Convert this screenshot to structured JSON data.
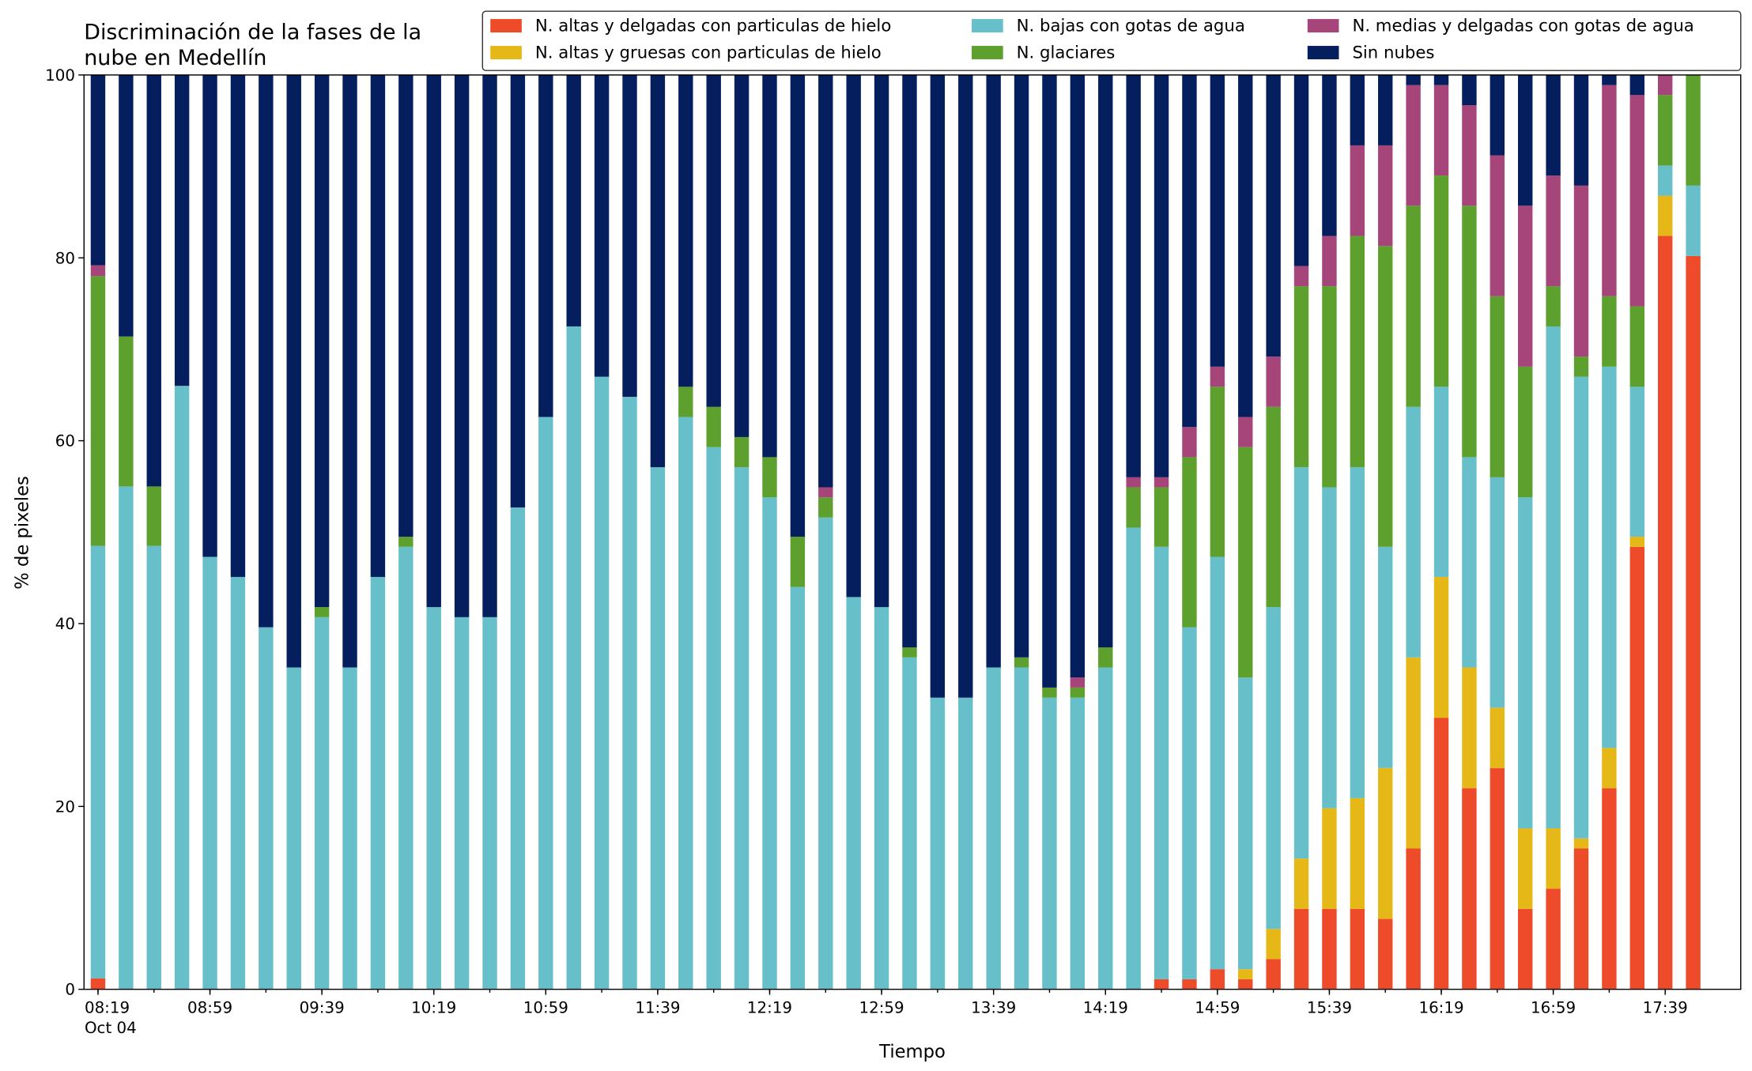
{
  "chart_data": {
    "type": "stacked_bar",
    "title": "Discriminación de la fases de la\nnube en Medellín",
    "xlabel": "Tiempo",
    "ylabel": "% de pixeles",
    "xdate": "Oct 04",
    "categories": [
      "08:19",
      null,
      null,
      null,
      "08:59",
      null,
      null,
      null,
      "09:39",
      null,
      null,
      null,
      "10:19",
      null,
      null,
      null,
      "10:59",
      null,
      null,
      null,
      "11:39",
      null,
      null,
      null,
      "12:19",
      null,
      null,
      null,
      "12:59",
      null,
      null,
      null,
      "13:39",
      null,
      null,
      null,
      "14:19",
      null,
      null,
      null,
      "14:59",
      null,
      null,
      null,
      "15:39",
      null,
      null,
      null,
      "16:19",
      null,
      null,
      null,
      "16:59",
      null,
      null,
      null,
      "17:39",
      null
    ],
    "ylim": [
      0,
      100
    ],
    "yticks": [
      0,
      20,
      40,
      60,
      80,
      100
    ],
    "legend": "upper right",
    "series": [
      {
        "name": "N. altas y delgadas con particulas de hielo",
        "color": "#ee4b2b",
        "values": [
          1.2,
          0,
          0,
          0,
          0,
          0,
          0,
          0,
          0,
          0,
          0,
          0,
          0,
          0,
          0,
          0,
          0,
          0,
          0,
          0,
          0,
          0,
          0,
          0,
          0,
          0,
          0,
          0,
          0,
          0,
          0,
          0,
          0,
          0,
          0,
          0,
          0,
          0,
          1.1,
          1.1,
          2.2,
          1.1,
          3.3,
          8.8,
          8.8,
          8.8,
          7.7,
          15.4,
          29.7,
          22,
          24.2,
          8.8,
          11,
          15.4,
          22,
          48.4,
          82.4,
          80.2
        ]
      },
      {
        "name": "N. altas y gruesas con particulas de hielo",
        "color": "#e6b817",
        "values": [
          0,
          0,
          0,
          0,
          0,
          0,
          0,
          0,
          0,
          0,
          0,
          0,
          0,
          0,
          0,
          0,
          0,
          0,
          0,
          0,
          0,
          0,
          0,
          0,
          0,
          0,
          0,
          0,
          0,
          0,
          0,
          0,
          0,
          0,
          0,
          0,
          0,
          0,
          0,
          0,
          0,
          1.1,
          3.3,
          5.5,
          11,
          12.1,
          16.5,
          20.9,
          15.4,
          13.2,
          6.6,
          8.8,
          6.6,
          1.1,
          4.4,
          1.1,
          4.4,
          0
        ]
      },
      {
        "name": "N. bajas con gotas de agua",
        "color": "#67bfca",
        "values": [
          47.3,
          55,
          48.5,
          66,
          47.3,
          45.1,
          39.6,
          35.2,
          40.7,
          35.2,
          45.1,
          48.4,
          41.8,
          40.7,
          40.7,
          52.7,
          62.6,
          72.5,
          67,
          64.8,
          57.1,
          62.6,
          59.3,
          57.1,
          53.8,
          44,
          51.6,
          42.9,
          41.8,
          36.3,
          31.9,
          31.9,
          35.2,
          35.2,
          31.9,
          31.9,
          35.2,
          50.5,
          47.3,
          38.5,
          45.1,
          31.9,
          35.2,
          42.8,
          35.1,
          36.2,
          24.2,
          27.4,
          20.8,
          23,
          25.2,
          36.2,
          54.9,
          50.5,
          41.7,
          16.4,
          3.3,
          7.7
        ]
      },
      {
        "name": "N. glaciares",
        "color": "#5da02e",
        "values": [
          29.5,
          16.4,
          6.5,
          0,
          0,
          0,
          0,
          0,
          1.1,
          0,
          0,
          1.1,
          0,
          0,
          0,
          0,
          0,
          0,
          0,
          0,
          0,
          3.3,
          4.4,
          3.3,
          4.4,
          5.5,
          2.2,
          0,
          0,
          1.1,
          0,
          0,
          0,
          1.1,
          1.1,
          1.1,
          2.2,
          4.4,
          6.5,
          18.6,
          18.6,
          25.2,
          21.9,
          19.8,
          22,
          25.3,
          32.9,
          22,
          23.1,
          27.5,
          19.8,
          14.3,
          4.4,
          2.2,
          7.7,
          8.8,
          7.7,
          12.1
        ]
      },
      {
        "name": "N. medias y delgadas con gotas de agua",
        "color": "#a6457a",
        "values": [
          1.2,
          0,
          0,
          0,
          0,
          0,
          0,
          0,
          0,
          0,
          0,
          0,
          0,
          0,
          0,
          0,
          0,
          0,
          0,
          0,
          0,
          0,
          0,
          0,
          0,
          0,
          1.1,
          0,
          0,
          0,
          0,
          0,
          0,
          0,
          0,
          1.1,
          0,
          1.1,
          1.1,
          3.3,
          2.2,
          3.3,
          5.5,
          2.2,
          5.5,
          9.9,
          11,
          13.2,
          9.9,
          11,
          15.4,
          17.6,
          12.1,
          18.7,
          23.1,
          23.1,
          2.2,
          0
        ]
      },
      {
        "name": "Sin nubes",
        "color": "#041e5e",
        "values": [
          20.8,
          28.6,
          45,
          34,
          52.7,
          54.9,
          60.4,
          64.8,
          58.2,
          64.8,
          54.9,
          50.5,
          58.2,
          59.3,
          59.3,
          47.3,
          37.4,
          27.5,
          33,
          35.2,
          42.9,
          34.1,
          36.3,
          39.6,
          41.8,
          50.5,
          45.1,
          57.1,
          58.2,
          62.6,
          68.1,
          68.1,
          64.8,
          63.7,
          67,
          65.9,
          62.6,
          44,
          44,
          38.5,
          31.9,
          37.4,
          30.8,
          20.9,
          17.6,
          7.7,
          7.7,
          1.1,
          1.1,
          3.3,
          8.8,
          14.3,
          11,
          12.1,
          1.1,
          2.2,
          0,
          0
        ]
      }
    ]
  }
}
